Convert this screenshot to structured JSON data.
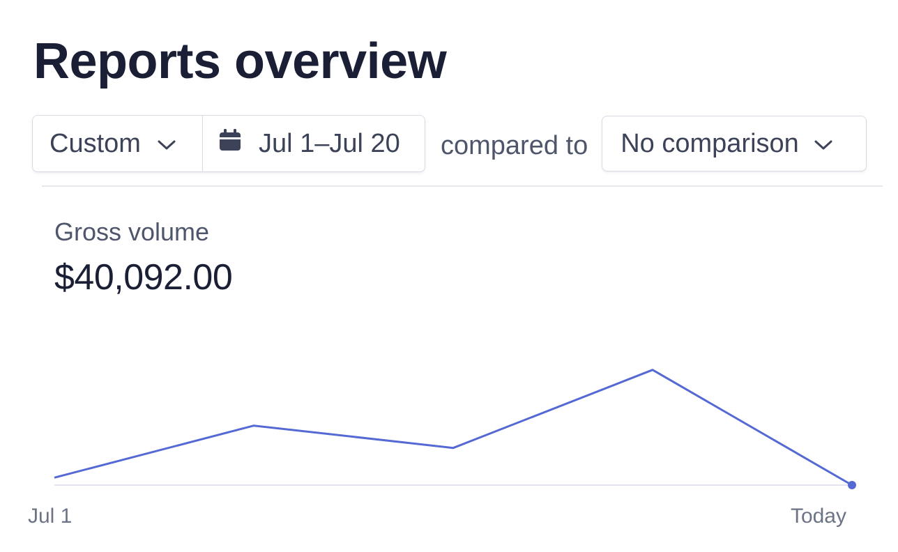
{
  "header": {
    "title": "Reports overview"
  },
  "filters": {
    "range_preset": "Custom",
    "date_range": "Jul 1–Jul 20",
    "compared_to_label": "compared to",
    "comparison": "No comparison"
  },
  "metric": {
    "label": "Gross volume",
    "value": "$40,092.00"
  },
  "colors": {
    "accent": "#5469d4",
    "title": "#1a1f36",
    "text": "#3c4257",
    "border": "#d7dbe3"
  },
  "icons": {
    "range_preset_chevron": "chevron-down-icon",
    "date_icon": "calendar-icon",
    "comparison_chevron": "chevron-down-icon"
  },
  "chart_data": {
    "type": "line",
    "title": "",
    "xlabel": "",
    "ylabel": "",
    "x_tick_labels": [
      "Jul 1",
      "Today"
    ],
    "x": [
      0,
      5,
      10,
      15,
      20
    ],
    "values": [
      2,
      16,
      10,
      31,
      0
    ],
    "ylim": [
      0,
      33
    ],
    "grid": false,
    "legend": "none",
    "end_marker": true
  }
}
